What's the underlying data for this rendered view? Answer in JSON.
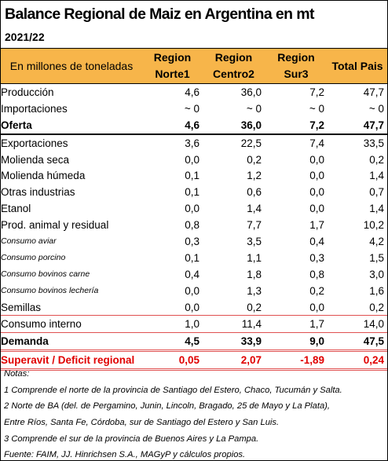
{
  "title": "Balance Regional de Maiz en Argentina en mt",
  "subtitle": "2021/22",
  "header": [
    "En millones de toneladas",
    "Region Norte1",
    "Region Centro2",
    "Region Sur3",
    "Total Pais"
  ],
  "rows": [
    {
      "label": "Producción",
      "values": [
        "4,6",
        "36,0",
        "7,2",
        "47,7"
      ]
    },
    {
      "label": "Importaciones",
      "values": [
        "~ 0",
        "~ 0",
        "~ 0",
        "~ 0"
      ]
    },
    {
      "label": "Oferta",
      "values": [
        "4,6",
        "36,0",
        "7,2",
        "47,7"
      ]
    },
    {
      "label": "Exportaciones",
      "values": [
        "3,6",
        "22,5",
        "7,4",
        "33,5"
      ]
    },
    {
      "label": "Molienda seca",
      "values": [
        "0,0",
        "0,2",
        "0,0",
        "0,2"
      ]
    },
    {
      "label": "Molienda húmeda",
      "values": [
        "0,1",
        "1,2",
        "0,0",
        "1,4"
      ]
    },
    {
      "label": "Otras industrias",
      "values": [
        "0,1",
        "0,6",
        "0,0",
        "0,7"
      ]
    },
    {
      "label": "Etanol",
      "values": [
        "0,0",
        "1,4",
        "0,0",
        "1,4"
      ]
    },
    {
      "label": "Prod. animal y residual",
      "values": [
        "0,8",
        "7,7",
        "1,7",
        "10,2"
      ]
    },
    {
      "label": "Consumo aviar",
      "values": [
        "0,3",
        "3,5",
        "0,4",
        "4,2"
      ]
    },
    {
      "label": "Consumo porcino",
      "values": [
        "0,1",
        "1,1",
        "0,3",
        "1,5"
      ]
    },
    {
      "label": "Consumo bovinos carne",
      "values": [
        "0,4",
        "1,8",
        "0,8",
        "3,0"
      ]
    },
    {
      "label": "Consumo bovinos lechería",
      "values": [
        "0,0",
        "1,3",
        "0,2",
        "1,6"
      ]
    },
    {
      "label": "Semillas",
      "values": [
        "0,0",
        "0,2",
        "0,0",
        "0,2"
      ]
    },
    {
      "label": "Consumo interno",
      "values": [
        "1,0",
        "11,4",
        "1,7",
        "14,0"
      ]
    },
    {
      "label": "Demanda",
      "values": [
        "4,5",
        "33,9",
        "9,0",
        "47,5"
      ]
    },
    {
      "label": "Superavit / Deficit regional",
      "values": [
        "0,05",
        "2,07",
        "-1,89",
        "0,24"
      ]
    }
  ],
  "notes": [
    "Notas:",
    "1 Comprende el norte de la provincia de Santiago del Estero, Chaco, Tucumán y Salta.",
    "2 Norte de BA (del. de Pergamino, Junin, Lincoln, Bragado, 25 de Mayo y La Plata),",
    "Entre Ríos, Santa Fe, Córdoba, sur de Santiago del Estero y San Luis.",
    "3 Comprende el sur de la provincia de Buenos Aires y La Pampa.",
    "Fuente: FAIM, JJ. Hinrichsen S.A., MAGyP y cálculos propios."
  ]
}
